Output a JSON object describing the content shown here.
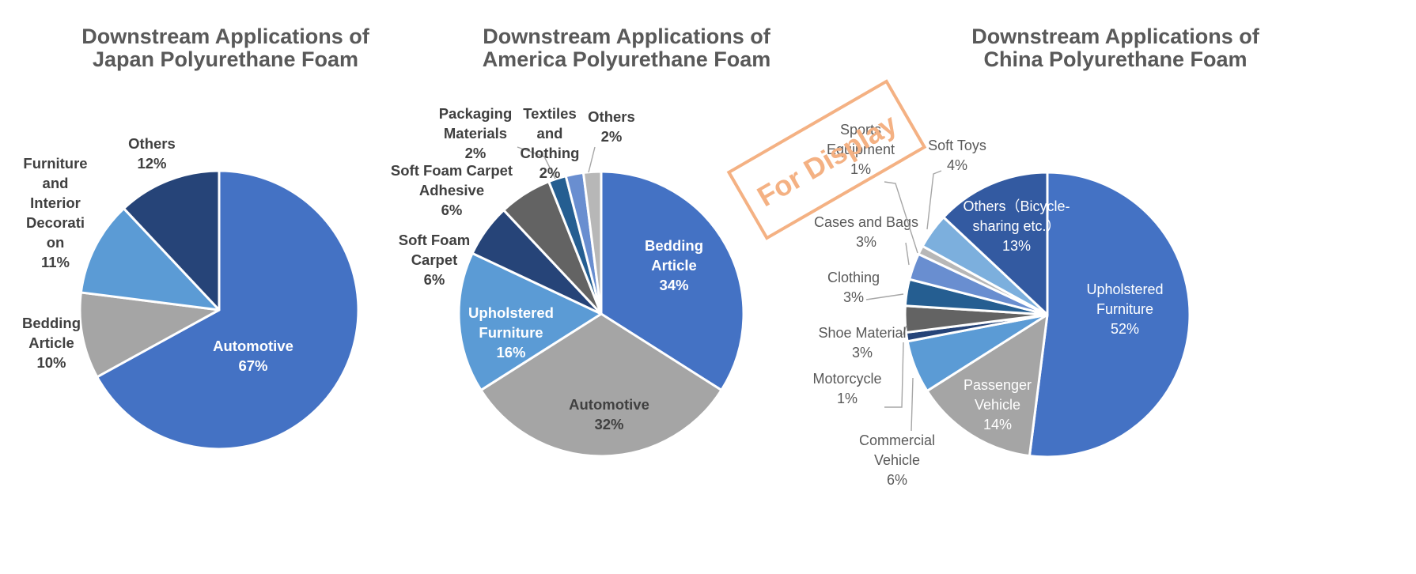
{
  "chart_data": [
    {
      "type": "pie",
      "title": [
        "Downstream Applications of",
        "Japan Polyurethane Foam"
      ],
      "label_style": "bold",
      "slices": [
        {
          "label": [
            "Automotive",
            "67%"
          ],
          "value": 67,
          "color": "#4472c4",
          "label_color": "#ffffff"
        },
        {
          "label": [
            "Bedding",
            "Article",
            "10%"
          ],
          "value": 10,
          "color": "#a5a5a5",
          "label_color": "#404040"
        },
        {
          "label": [
            "Furniture",
            "and",
            "Interior",
            "Decorati",
            "on",
            "11%"
          ],
          "value": 11,
          "color": "#5b9bd5",
          "label_color": "#404040"
        },
        {
          "label": [
            "Others",
            "12%"
          ],
          "value": 12,
          "color": "#264478",
          "label_color": "#404040"
        }
      ]
    },
    {
      "type": "pie",
      "title": [
        "Downstream Applications of",
        "America Polyurethane Foam"
      ],
      "label_style": "bold",
      "slices": [
        {
          "label": [
            "Bedding",
            "Article",
            "34%"
          ],
          "value": 34,
          "color": "#4472c4",
          "label_color": "#ffffff"
        },
        {
          "label": [
            "Automotive",
            "32%"
          ],
          "value": 32,
          "color": "#a5a5a5",
          "label_color": "#404040"
        },
        {
          "label": [
            "Upholstered",
            "Furniture",
            "16%"
          ],
          "value": 16,
          "color": "#5b9bd5",
          "label_color": "#ffffff"
        },
        {
          "label": [
            "Soft Foam",
            "Carpet",
            "6%"
          ],
          "value": 6,
          "color": "#264478",
          "label_color": "#404040"
        },
        {
          "label": [
            "Soft Foam Carpet",
            "Adhesive",
            "6%"
          ],
          "value": 6,
          "color": "#636363",
          "label_color": "#404040"
        },
        {
          "label": [
            "Packaging",
            "Materials",
            "2%"
          ],
          "value": 2,
          "color": "#255e91",
          "label_color": "#404040"
        },
        {
          "label": [
            "Textiles",
            "and",
            "Clothing",
            "2%"
          ],
          "value": 2,
          "color": "#698ed0",
          "label_color": "#404040"
        },
        {
          "label": [
            "Others",
            "2%"
          ],
          "value": 2,
          "color": "#b7b7b7",
          "label_color": "#404040"
        }
      ]
    },
    {
      "type": "pie",
      "title": [
        "Downstream Applications of",
        "China Polyurethane Foam"
      ],
      "label_style": "regular",
      "slices": [
        {
          "label": [
            "Upholstered",
            "Furniture",
            "52%"
          ],
          "value": 52,
          "color": "#4472c4",
          "label_color": "#ffffff"
        },
        {
          "label": [
            "Passenger",
            "Vehicle",
            "14%"
          ],
          "value": 14,
          "color": "#a5a5a5",
          "label_color": "#ffffff"
        },
        {
          "label": [
            "Commercial",
            "Vehicle",
            "6%"
          ],
          "value": 6,
          "color": "#5b9bd5",
          "label_color": "#595959"
        },
        {
          "label": [
            "Motorcycle",
            "1%"
          ],
          "value": 1,
          "color": "#264478",
          "label_color": "#595959"
        },
        {
          "label": [
            "Shoe Material",
            "3%"
          ],
          "value": 3,
          "color": "#636363",
          "label_color": "#595959"
        },
        {
          "label": [
            "Clothing",
            "3%"
          ],
          "value": 3,
          "color": "#255e91",
          "label_color": "#595959"
        },
        {
          "label": [
            "Cases and Bags",
            "3%"
          ],
          "value": 3,
          "color": "#698ed0",
          "label_color": "#595959"
        },
        {
          "label": [
            "Sports",
            "Equipment",
            "1%"
          ],
          "value": 1,
          "color": "#b7b7b7",
          "label_color": "#595959"
        },
        {
          "label": [
            "Soft Toys",
            "4%"
          ],
          "value": 4,
          "color": "#7cafdd",
          "label_color": "#595959"
        },
        {
          "label": [
            "Others（Bicycle-",
            "sharing etc.）",
            "13%"
          ],
          "value": 13,
          "color": "#335aa1",
          "label_color": "#ffffff"
        }
      ]
    }
  ],
  "watermark": {
    "text": "For Display",
    "color": "#f4b183"
  }
}
